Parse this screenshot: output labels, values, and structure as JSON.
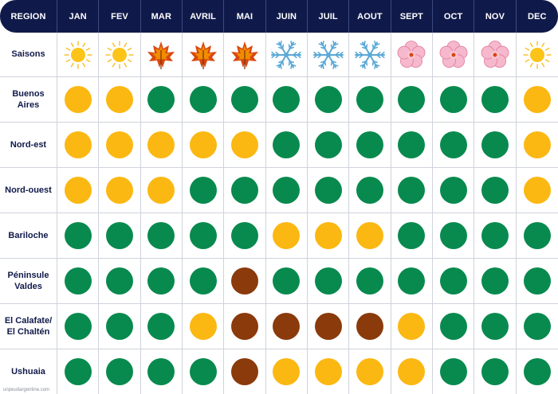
{
  "header": {
    "region_label": "REGION",
    "months": [
      "JAN",
      "FEV",
      "MAR",
      "AVRIL",
      "MAI",
      "JUIN",
      "JUIL",
      "AOUT",
      "SEPT",
      "OCT",
      "NOV",
      "DEC"
    ]
  },
  "seasons": {
    "label": "Saisons",
    "icons": [
      "sun-icon",
      "sun-icon",
      "autumn-leaf-icon",
      "autumn-leaf-icon",
      "autumn-leaf-icon",
      "snowflake-icon",
      "snowflake-icon",
      "snowflake-icon",
      "cherry-blossom-icon",
      "cherry-blossom-icon",
      "cherry-blossom-icon",
      "sun-icon"
    ]
  },
  "colors": {
    "yellow": "#fbb812",
    "green": "#088a4e",
    "brown": "#8a3a0b",
    "header_bg": "#101a4a"
  },
  "rows": [
    {
      "label": "Buenos Aires",
      "values": [
        "yellow",
        "yellow",
        "green",
        "green",
        "green",
        "green",
        "green",
        "green",
        "green",
        "green",
        "green",
        "yellow"
      ]
    },
    {
      "label": "Nord-est",
      "values": [
        "yellow",
        "yellow",
        "yellow",
        "yellow",
        "yellow",
        "green",
        "green",
        "green",
        "green",
        "green",
        "green",
        "yellow"
      ]
    },
    {
      "label": "Nord-ouest",
      "values": [
        "yellow",
        "yellow",
        "yellow",
        "green",
        "green",
        "green",
        "green",
        "green",
        "green",
        "green",
        "green",
        "yellow"
      ]
    },
    {
      "label": "Bariloche",
      "values": [
        "green",
        "green",
        "green",
        "green",
        "green",
        "yellow",
        "yellow",
        "yellow",
        "green",
        "green",
        "green",
        "green"
      ]
    },
    {
      "label": "Péninsule Valdes",
      "values": [
        "green",
        "green",
        "green",
        "green",
        "brown",
        "green",
        "green",
        "green",
        "green",
        "green",
        "green",
        "green"
      ]
    },
    {
      "label": "El Calafate/ El Chaltén",
      "values": [
        "green",
        "green",
        "green",
        "yellow",
        "brown",
        "brown",
        "brown",
        "brown",
        "yellow",
        "green",
        "green",
        "green"
      ]
    },
    {
      "label": "Ushuaia",
      "values": [
        "green",
        "green",
        "green",
        "green",
        "brown",
        "yellow",
        "yellow",
        "yellow",
        "yellow",
        "green",
        "green",
        "green"
      ]
    }
  ],
  "watermark": "unpeudargentine.com"
}
